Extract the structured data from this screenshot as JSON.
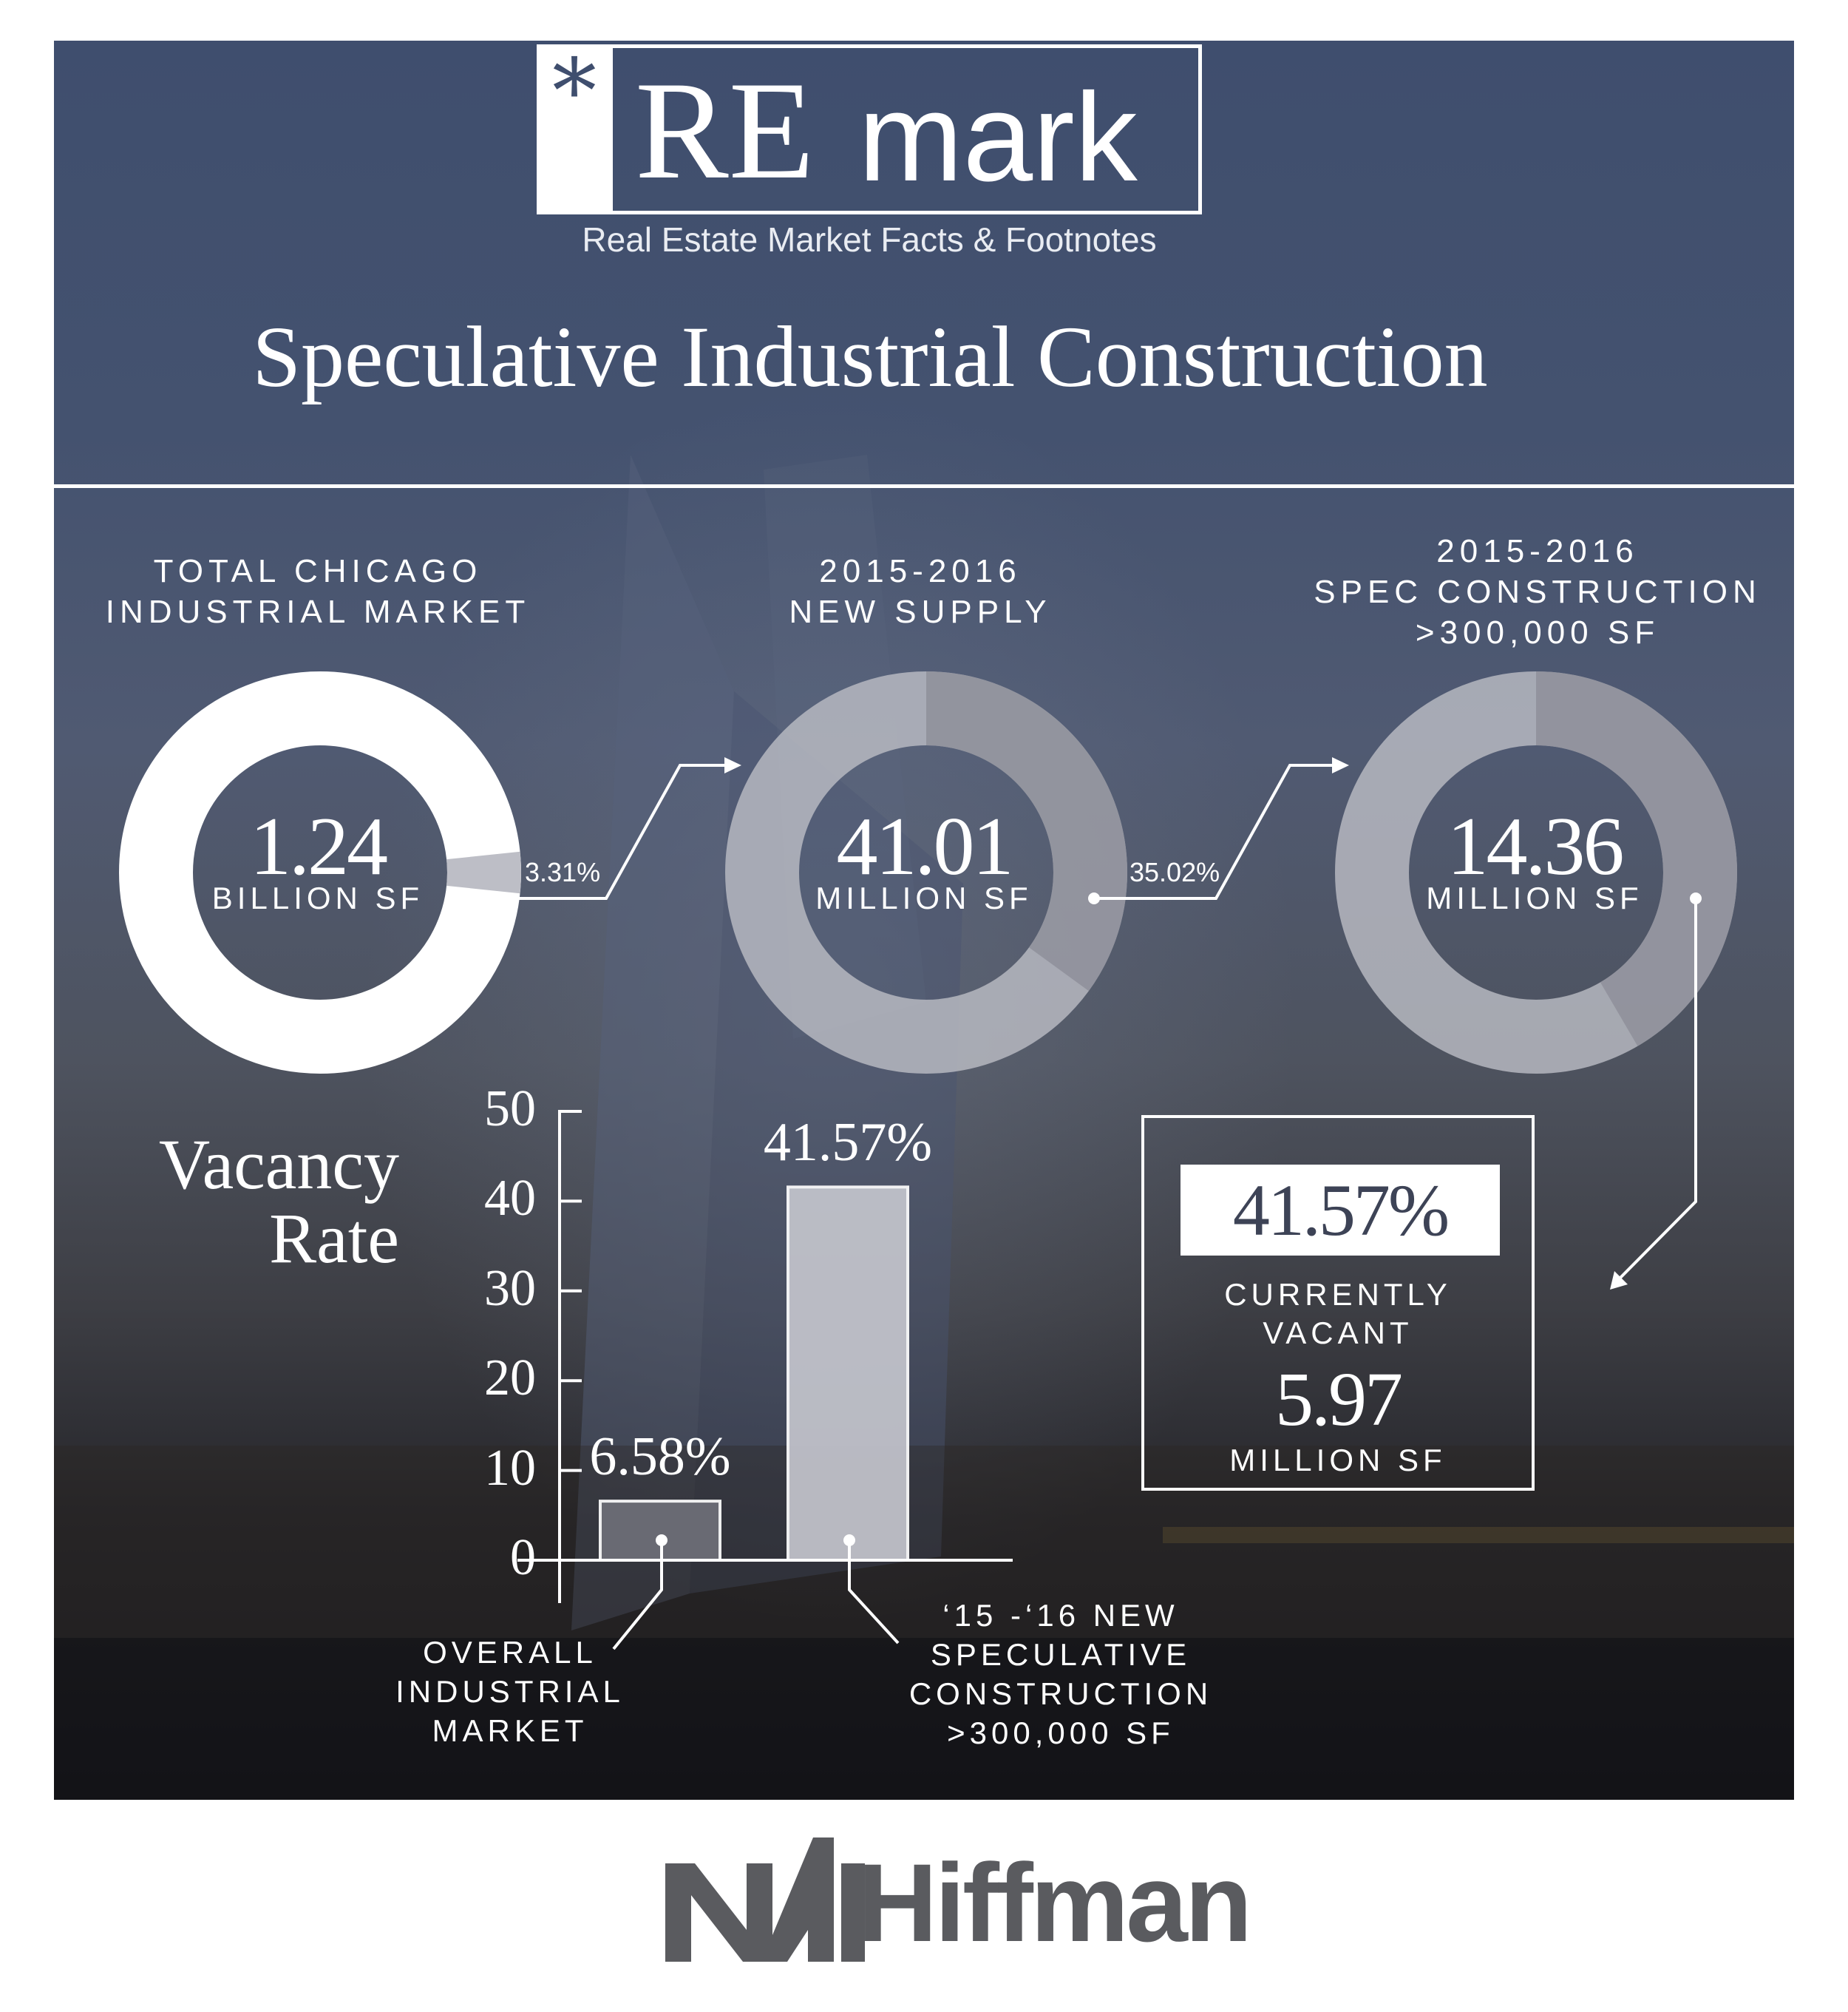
{
  "header": {
    "logo_star": "*",
    "logo_re": "RE",
    "logo_mark": "mark",
    "tagline": "Real Estate Market Facts & Footnotes",
    "title": "Speculative Industrial Construction"
  },
  "donuts": [
    {
      "caption": "TOTAL CHICAGO\nINDUSTRIAL MARKET",
      "value": "1.24",
      "unit": "BILLION SF",
      "slice_percent": 3.31,
      "slice_label": "3.31%"
    },
    {
      "caption": "2015-2016\nNEW SUPPLY",
      "value": "41.01",
      "unit": "MILLION SF",
      "slice_percent": 35.02,
      "slice_label": "35.02%"
    },
    {
      "caption": "2015-2016\nSPEC CONSTRUCTION\n>300,000 SF",
      "value": "14.36",
      "unit": "MILLION SF",
      "slice_percent": 41.57,
      "slice_label": ""
    }
  ],
  "chart_data": {
    "type": "bar",
    "title": "",
    "ylabel": "Vacancy Rate",
    "xlabel": "",
    "ylim": [
      0,
      50
    ],
    "yticks": [
      "0",
      "10",
      "20",
      "30",
      "40",
      "50"
    ],
    "categories": [
      "OVERALL\nINDUSTRIAL\nMARKET",
      "‘15 -‘16 NEW\nSPECULATIVE\nCONSTRUCTION\n>300,000 SF"
    ],
    "values": [
      6.58,
      41.57
    ],
    "value_labels": [
      "6.58%",
      "41.57%"
    ]
  },
  "vacant": {
    "percent": "41.57%",
    "caption": "CURRENTLY\nVACANT",
    "value": "5.97",
    "unit": "MILLION SF"
  },
  "footer": {
    "brand": "Hiffman",
    "brand_prefix": "NAI"
  },
  "colors": {
    "panel": "#3f4e6e",
    "white": "#ffffff",
    "donut_light": "#bdbec6",
    "donut_dark": "#8e8f9a",
    "footer_logo": "#5a5b5f"
  }
}
